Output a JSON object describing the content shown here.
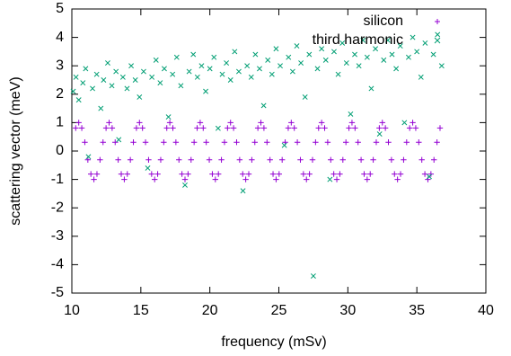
{
  "chart_data": {
    "type": "scatter",
    "xlabel": "frequency (mSv)",
    "ylabel": "scattering vector (meV)",
    "xlim": [
      10,
      40
    ],
    "xticks": [
      10,
      15,
      20,
      25,
      30,
      35,
      40
    ],
    "ylim": [
      -5,
      5
    ],
    "yticks": [
      -5,
      -4,
      -3,
      -2,
      -1,
      0,
      1,
      2,
      3,
      4,
      5
    ],
    "grid": false,
    "legend": "top-right",
    "series": [
      {
        "name": "silicon",
        "color": "#9400d3",
        "marker": "plus",
        "x": [
          10.28,
          10.5,
          10.72,
          10.94,
          11.16,
          11.38,
          11.6,
          11.82,
          12.04,
          12.26,
          12.48,
          12.7,
          12.92,
          13.14,
          13.36,
          13.58,
          13.8,
          14.02,
          14.24,
          14.46,
          14.68,
          14.9,
          15.12,
          15.34,
          15.56,
          15.78,
          16,
          16.22,
          16.44,
          16.66,
          16.88,
          17.1,
          17.32,
          17.54,
          17.76,
          17.98,
          18.2,
          18.42,
          18.64,
          18.86,
          19.08,
          19.3,
          19.52,
          19.74,
          19.96,
          20.18,
          20.4,
          20.62,
          20.84,
          21.06,
          21.28,
          21.5,
          21.72,
          21.94,
          22.16,
          22.38,
          22.6,
          22.82,
          23.04,
          23.26,
          23.48,
          23.7,
          23.92,
          24.14,
          24.36,
          24.58,
          24.8,
          25.02,
          25.24,
          25.46,
          25.68,
          25.9,
          26.12,
          26.34,
          26.56,
          26.78,
          27,
          27.22,
          27.44,
          27.66,
          27.88,
          28.1,
          28.32,
          28.54,
          28.76,
          28.98,
          29.2,
          29.42,
          29.64,
          29.86,
          30.08,
          30.3,
          30.52,
          30.74,
          30.96,
          31.18,
          31.4,
          31.62,
          31.84,
          32.06,
          32.28,
          32.5,
          32.72,
          32.94,
          33.16,
          33.38,
          33.6,
          33.82,
          34.04,
          34.26,
          34.48,
          34.7,
          34.92,
          35.14,
          35.36,
          35.58,
          35.8,
          36.02,
          36.24,
          36.46,
          36.68
        ],
        "values": [
          0.81,
          1,
          0.81,
          0.31,
          -0.31,
          -0.81,
          -1,
          -0.81,
          -0.31,
          0.31,
          0.81,
          1,
          0.81,
          0.31,
          -0.31,
          -0.81,
          -1,
          -0.81,
          -0.31,
          0.31,
          0.81,
          1,
          0.81,
          0.31,
          -0.31,
          -0.81,
          -1,
          -0.81,
          -0.31,
          0.31,
          0.81,
          1,
          0.81,
          0.31,
          -0.31,
          -0.81,
          -1,
          -0.81,
          -0.31,
          0.31,
          0.81,
          1,
          0.81,
          0.31,
          -0.31,
          -0.81,
          -1,
          -0.81,
          -0.31,
          0.31,
          0.81,
          1,
          0.81,
          0.31,
          -0.31,
          -0.81,
          -1,
          -0.81,
          -0.31,
          0.31,
          0.81,
          1,
          0.81,
          0.31,
          -0.31,
          -0.81,
          -1,
          -0.81,
          -0.31,
          0.31,
          0.81,
          1,
          0.81,
          0.31,
          -0.31,
          -0.81,
          -1,
          -0.81,
          -0.31,
          0.31,
          0.81,
          1,
          0.81,
          0.31,
          -0.31,
          -0.81,
          -1,
          -0.81,
          -0.31,
          0.31,
          0.81,
          1,
          0.81,
          0.31,
          -0.31,
          -0.81,
          -1,
          -0.81,
          -0.31,
          0.31,
          0.81,
          1,
          0.81,
          0.31,
          -0.31,
          -0.81,
          -1,
          -0.81,
          -0.31,
          0.31,
          0.81,
          1,
          0.81,
          0.31,
          -0.31,
          -0.81,
          -1,
          -0.81,
          -0.31,
          0.31,
          0.81
        ]
      },
      {
        "name": "third harmonic",
        "color": "#009e73",
        "marker": "cross",
        "x": [
          10.1,
          10.3,
          10.5,
          10.8,
          11.0,
          11.2,
          11.5,
          11.8,
          12.1,
          12.3,
          12.6,
          12.9,
          13.2,
          13.4,
          13.7,
          14.0,
          14.3,
          14.6,
          14.9,
          15.2,
          15.5,
          15.8,
          16.1,
          16.4,
          16.7,
          17.0,
          17.3,
          17.6,
          17.9,
          18.2,
          18.5,
          18.8,
          19.1,
          19.4,
          19.7,
          20.0,
          20.3,
          20.6,
          20.9,
          21.2,
          21.5,
          21.8,
          22.1,
          22.4,
          22.7,
          23.0,
          23.3,
          23.6,
          23.9,
          24.2,
          24.5,
          24.8,
          25.1,
          25.4,
          25.7,
          26.0,
          26.3,
          26.6,
          26.9,
          27.2,
          27.5,
          27.8,
          28.1,
          28.4,
          28.7,
          29.0,
          29.3,
          29.6,
          29.9,
          30.2,
          30.5,
          30.8,
          31.1,
          31.4,
          31.7,
          32.0,
          32.3,
          32.6,
          32.9,
          33.2,
          33.5,
          33.8,
          34.1,
          34.4,
          34.7,
          35.0,
          35.3,
          35.6,
          35.9,
          36.2,
          36.5,
          36.8
        ],
        "values": [
          2.1,
          2.6,
          1.8,
          2.4,
          2.9,
          -0.2,
          2.2,
          2.7,
          1.5,
          2.5,
          3.1,
          2.3,
          2.8,
          0.4,
          2.6,
          2.2,
          3.0,
          2.5,
          1.9,
          2.8,
          -0.6,
          2.6,
          3.2,
          2.4,
          2.9,
          1.2,
          2.7,
          3.3,
          2.3,
          -1.2,
          2.8,
          3.4,
          2.6,
          3.0,
          2.1,
          2.9,
          3.3,
          0.8,
          2.7,
          3.1,
          2.5,
          3.5,
          2.8,
          -1.4,
          3.0,
          2.6,
          3.4,
          2.9,
          1.6,
          3.2,
          2.7,
          3.6,
          3.0,
          0.2,
          3.3,
          2.8,
          3.7,
          3.1,
          1.9,
          3.4,
          -4.4,
          2.9,
          3.6,
          3.2,
          -1.0,
          3.5,
          2.7,
          3.8,
          3.1,
          1.3,
          3.4,
          3.0,
          3.9,
          3.3,
          2.2,
          3.6,
          0.6,
          3.2,
          3.9,
          3.4,
          2.9,
          3.7,
          1.0,
          3.3,
          4.0,
          3.5,
          2.6,
          3.8,
          -0.9,
          3.4,
          4.1,
          3.0
        ]
      }
    ]
  }
}
